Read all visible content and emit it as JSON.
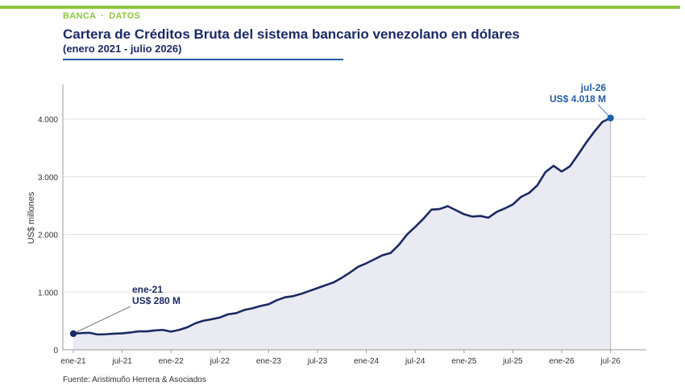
{
  "header": {
    "kicker_left": "BANCA",
    "kicker_sep": "·",
    "kicker_right": "DATOS",
    "title": "Cartera de Créditos Bruta del sistema bancario venezolano en dólares",
    "subtitle": "(enero 2021 - julio 2026)"
  },
  "colors": {
    "accent_green": "#8dc63f",
    "line": "#1b2a63",
    "area": "#e9eaf2",
    "end_marker": "#1f5ea8"
  },
  "footer": {
    "source": "Fuente: Aristimuño Herrera & Asociados"
  },
  "chart_data": {
    "type": "area",
    "ylabel": "US$ millones",
    "ylim": [
      0,
      4600
    ],
    "yticks": [
      0,
      1000,
      2000,
      3000,
      4000
    ],
    "ytick_labels": [
      "0",
      "1.000",
      "2.000",
      "3.000",
      "4.000"
    ],
    "xtick_labels": [
      "ene-21",
      "jul-21",
      "ene-22",
      "jul-22",
      "ene-23",
      "jul-23",
      "ene-24",
      "jul-24",
      "ene-25",
      "jul-25",
      "ene-26",
      "jul-26"
    ],
    "grid": "horizontal",
    "start_month": "ene-21",
    "x": [
      "ene-21",
      "feb-21",
      "mar-21",
      "abr-21",
      "may-21",
      "jun-21",
      "jul-21",
      "ago-21",
      "sep-21",
      "oct-21",
      "nov-21",
      "dic-21",
      "ene-22",
      "feb-22",
      "mar-22",
      "abr-22",
      "may-22",
      "jun-22",
      "jul-22",
      "ago-22",
      "sep-22",
      "oct-22",
      "nov-22",
      "dic-22",
      "ene-23",
      "feb-23",
      "mar-23",
      "abr-23",
      "may-23",
      "jun-23",
      "jul-23",
      "ago-23",
      "sep-23",
      "oct-23",
      "nov-23",
      "dic-23",
      "ene-24",
      "feb-24",
      "mar-24",
      "abr-24",
      "may-24",
      "jun-24",
      "jul-24",
      "ago-24",
      "sep-24",
      "oct-24",
      "nov-24",
      "dic-24",
      "ene-25",
      "feb-25",
      "mar-25",
      "abr-25",
      "may-25",
      "jun-25",
      "jul-25",
      "ago-25",
      "sep-25",
      "oct-25",
      "nov-25",
      "dic-25",
      "ene-26",
      "feb-26",
      "mar-26",
      "abr-26",
      "may-26",
      "jun-26",
      "jul-26"
    ],
    "values": [
      280,
      290,
      295,
      265,
      270,
      280,
      285,
      300,
      320,
      320,
      335,
      345,
      315,
      345,
      390,
      460,
      505,
      530,
      560,
      615,
      635,
      690,
      720,
      760,
      790,
      860,
      910,
      930,
      970,
      1020,
      1070,
      1120,
      1170,
      1250,
      1340,
      1440,
      1500,
      1570,
      1640,
      1680,
      1820,
      2000,
      2130,
      2270,
      2430,
      2440,
      2490,
      2420,
      2350,
      2310,
      2320,
      2290,
      2390,
      2450,
      2520,
      2650,
      2720,
      2850,
      3080,
      3190,
      3090,
      3180,
      3380,
      3590,
      3780,
      3950,
      4018
    ],
    "annotations": [
      {
        "label": "ene-21",
        "value_label": "US$ 280 M"
      },
      {
        "label": "jul-26",
        "value_label": "US$ 4.018 M"
      }
    ]
  }
}
